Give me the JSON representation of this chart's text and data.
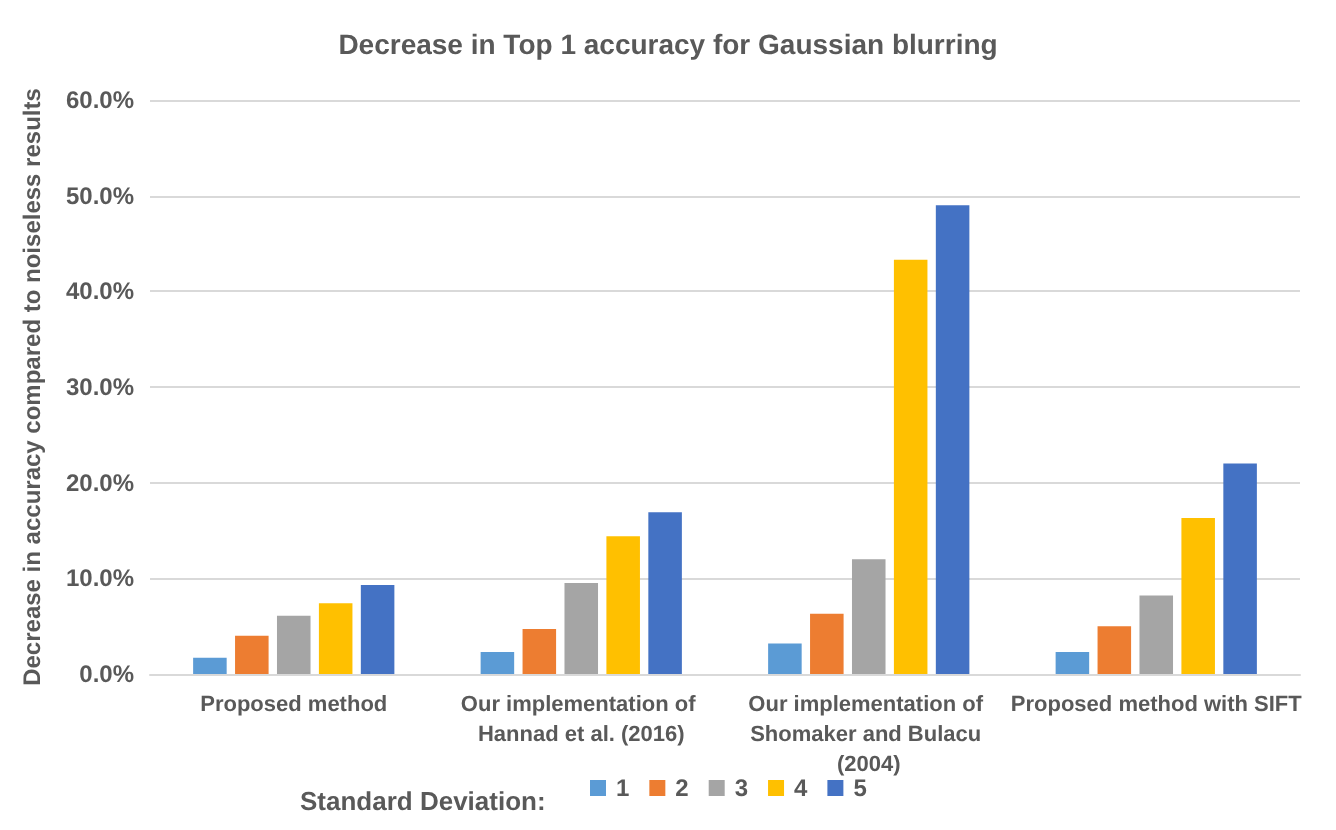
{
  "chart_data": {
    "type": "bar",
    "title": "Decrease in Top 1 accuracy for Gaussian blurring",
    "ylabel": "Decrease in accuracy compared to noiseless results",
    "legend_title": "Standard Deviation:",
    "categories": [
      "Proposed method",
      "Our implementation of Hannad et al. (2016)",
      "Our implementation of Shomaker and Bulacu (2004)",
      "Proposed method with SIFT"
    ],
    "series": [
      {
        "name": "1",
        "color": "#5b9bd5",
        "values": [
          1.7,
          2.3,
          3.2,
          2.3
        ]
      },
      {
        "name": "2",
        "color": "#ed7d31",
        "values": [
          4.0,
          4.7,
          6.3,
          5.0
        ]
      },
      {
        "name": "3",
        "color": "#a5a5a5",
        "values": [
          6.1,
          9.5,
          12.0,
          8.2
        ]
      },
      {
        "name": "4",
        "color": "#ffc000",
        "values": [
          7.4,
          14.4,
          43.3,
          16.3
        ]
      },
      {
        "name": "5",
        "color": "#4472c4",
        "values": [
          9.3,
          16.9,
          49.0,
          22.0
        ]
      }
    ],
    "ylim": [
      0,
      60
    ],
    "yticks": [
      {
        "value": 0,
        "label": "0.0%"
      },
      {
        "value": 10,
        "label": "10.0%"
      },
      {
        "value": 20,
        "label": "20.0%"
      },
      {
        "value": 30,
        "label": "30.0%"
      },
      {
        "value": 40,
        "label": "40.0%"
      },
      {
        "value": 50,
        "label": "50.0%"
      },
      {
        "value": 60,
        "label": "60.0%"
      }
    ],
    "grid": "y",
    "legend": "bottom"
  }
}
